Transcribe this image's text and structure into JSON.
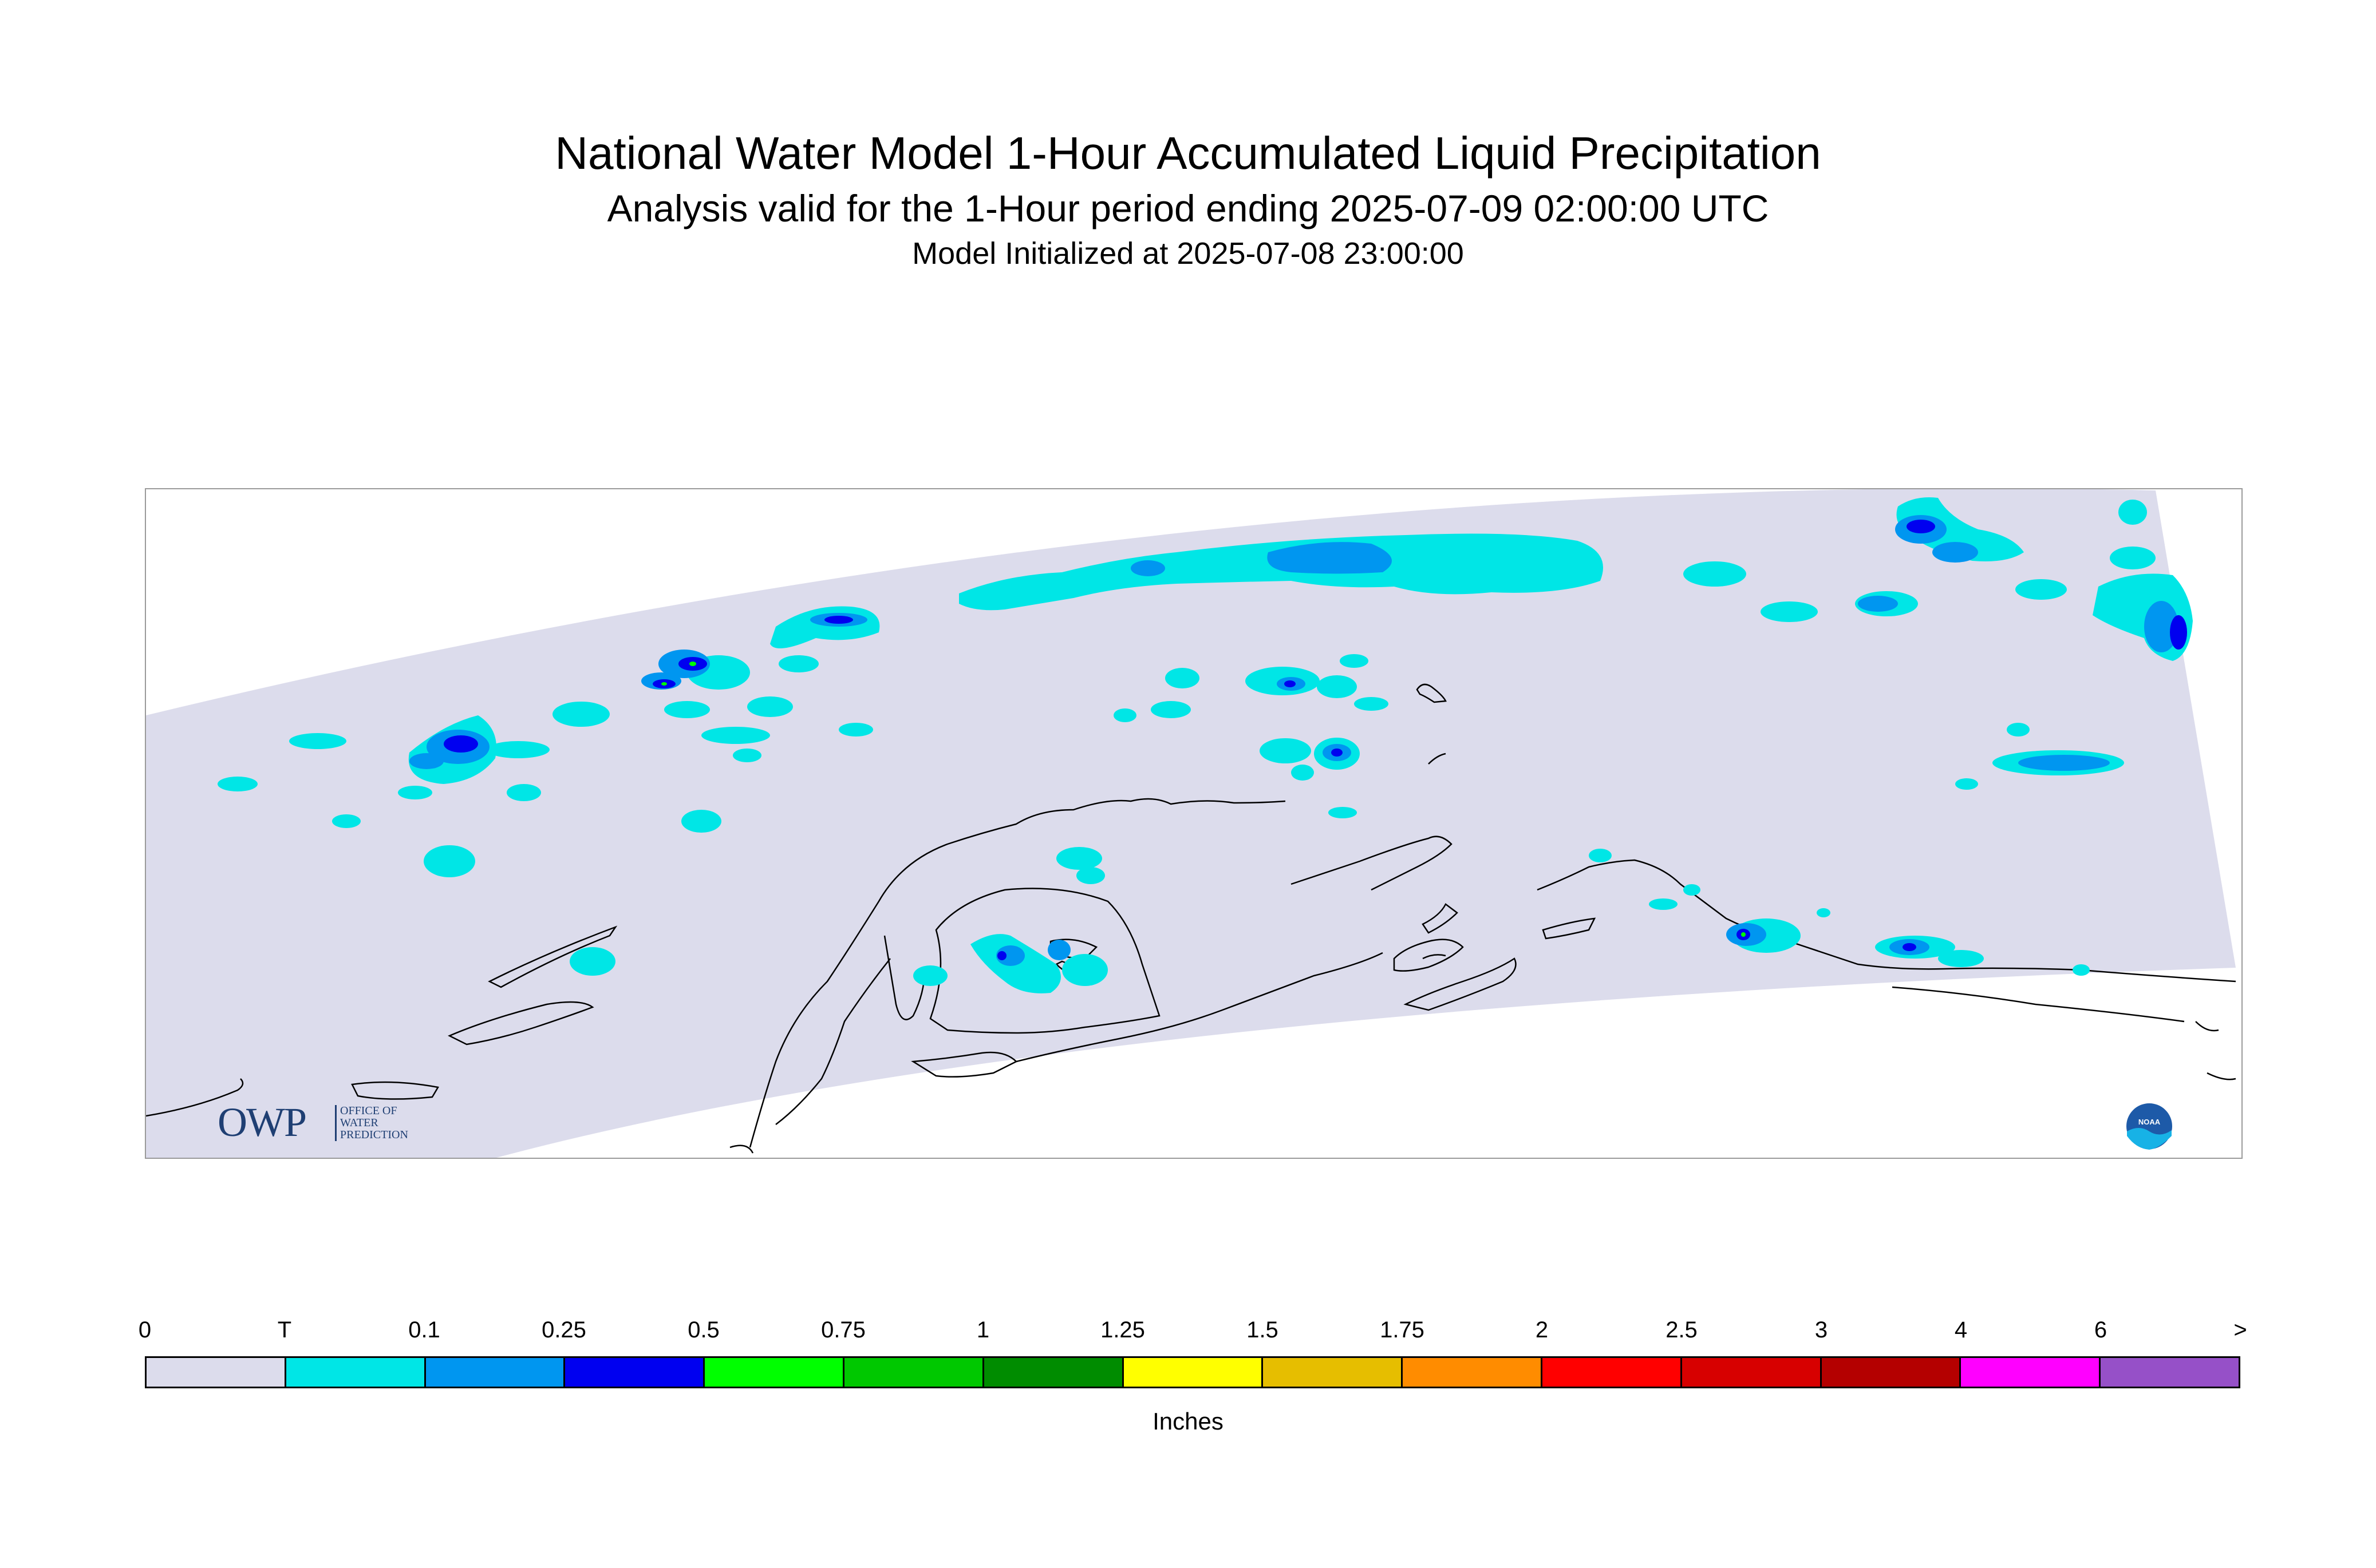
{
  "title": {
    "line1": "National Water Model 1-Hour Accumulated Liquid Precipitation",
    "line2": "Analysis valid for the 1-Hour period ending 2025-07-09 02:00:00 UTC",
    "line3": "Model Initialized at 2025-07-08 23:00:00"
  },
  "map": {
    "region": "Alaska",
    "domain_color": "#dcdcec",
    "coastline_color": "#000000"
  },
  "logos": {
    "owp": {
      "letters": "OWP",
      "subtitle": "OFFICE OF\nWATER\nPREDICTION"
    },
    "noaa": {
      "text": "NOAA"
    }
  },
  "legend": {
    "tick_labels": [
      "0",
      "T",
      "0.1",
      "0.25",
      "0.5",
      "0.75",
      "1",
      "1.25",
      "1.5",
      "1.75",
      "2",
      "2.5",
      "3",
      "4",
      "6",
      ">"
    ],
    "colors": [
      "#dcdcec",
      "#00e6e6",
      "#0096f0",
      "#0000f0",
      "#00ff00",
      "#00c800",
      "#008c00",
      "#ffff00",
      "#e6be00",
      "#ff8c00",
      "#ff0000",
      "#d70000",
      "#b40000",
      "#ff00ff",
      "#9650c8"
    ],
    "units": "Inches"
  }
}
